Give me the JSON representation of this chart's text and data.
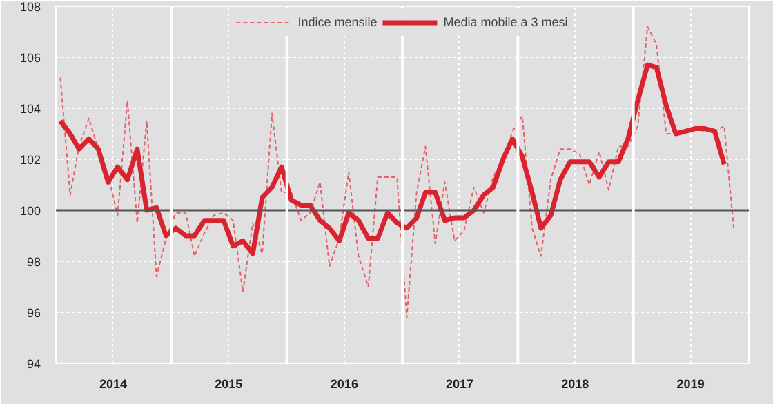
{
  "chart_data": {
    "type": "line",
    "x": [
      "2014-01-15",
      "2014-02-15",
      "2014-03-15",
      "2014-04-15",
      "2014-05-15",
      "2014-06-15",
      "2014-07-15",
      "2014-08-15",
      "2014-09-15",
      "2014-10-15",
      "2014-11-15",
      "2014-12-15",
      "2015-01-15",
      "2015-02-15",
      "2015-03-15",
      "2015-04-15",
      "2015-05-15",
      "2015-06-15",
      "2015-07-15",
      "2015-08-15",
      "2015-09-15",
      "2015-10-15",
      "2015-11-15",
      "2015-12-15",
      "2016-01-15",
      "2016-02-15",
      "2016-03-15",
      "2016-04-15",
      "2016-05-15",
      "2016-06-15",
      "2016-07-15",
      "2016-08-15",
      "2016-09-15",
      "2016-10-15",
      "2016-11-15",
      "2016-12-15",
      "2017-01-15",
      "2017-02-15",
      "2017-03-15",
      "2017-04-15",
      "2017-05-15",
      "2017-06-15",
      "2017-07-15",
      "2017-08-15",
      "2017-09-15",
      "2017-10-15",
      "2017-11-15",
      "2017-12-15",
      "2018-01-15",
      "2018-02-15",
      "2018-03-15",
      "2018-04-15",
      "2018-05-15",
      "2018-06-15",
      "2018-07-15",
      "2018-08-15",
      "2018-09-15",
      "2018-10-15",
      "2018-11-15",
      "2018-12-15",
      "2019-01-15",
      "2019-02-15",
      "2019-03-15",
      "2019-04-15",
      "2019-05-15",
      "2019-06-15",
      "2019-07-15",
      "2019-08-15",
      "2019-09-15",
      "2019-10-15",
      "2019-11-15"
    ],
    "series": [
      {
        "name": "Indice mensile",
        "color": "#e4606a",
        "line_style": "dashed",
        "values": [
          105.2,
          100.6,
          102.5,
          103.6,
          102.4,
          101.4,
          99.8,
          104.3,
          99.5,
          103.5,
          97.4,
          98.9,
          99.9,
          99.9,
          98.2,
          99.1,
          99.8,
          99.9,
          99.6,
          96.8,
          99.5,
          98.3,
          103.8,
          100.7,
          100.7,
          99.6,
          99.9,
          101.1,
          97.8,
          98.9,
          101.5,
          98.2,
          97.0,
          101.3,
          101.3,
          101.3,
          95.8,
          100.7,
          102.5,
          98.7,
          101.1,
          98.8,
          99.2,
          100.9,
          99.9,
          101.3,
          102.0,
          103.1,
          103.7,
          99.3,
          98.2,
          101.2,
          102.4,
          102.4,
          102.2,
          101.0,
          102.3,
          100.8,
          102.5,
          102.5,
          103.3,
          107.2,
          106.5,
          103.0,
          103.0,
          103.1,
          103.2,
          103.1,
          103.1,
          103.3,
          99.2
        ]
      },
      {
        "name": "Media mobile a 3 mesi",
        "color": "#d9232e",
        "line_style": "solid",
        "values": [
          103.5,
          103.0,
          102.4,
          102.8,
          102.4,
          101.1,
          101.7,
          101.2,
          102.4,
          100.0,
          100.1,
          99.0,
          99.3,
          99.0,
          99.0,
          99.6,
          99.6,
          99.6,
          98.6,
          98.8,
          98.3,
          100.5,
          100.9,
          101.7,
          100.4,
          100.2,
          100.2,
          99.6,
          99.3,
          98.8,
          99.9,
          99.6,
          98.9,
          98.9,
          99.9,
          99.5,
          99.3,
          99.7,
          100.7,
          100.7,
          99.6,
          99.7,
          99.7,
          100.0,
          100.6,
          100.9,
          102.0,
          102.8,
          102.1,
          100.7,
          99.3,
          99.8,
          101.2,
          101.9,
          101.9,
          101.9,
          101.3,
          101.9,
          101.9,
          102.8,
          104.3,
          105.7,
          105.6,
          104.1,
          103.0,
          103.1,
          103.2,
          103.2,
          103.1,
          101.8,
          null
        ]
      }
    ],
    "xlim": [
      "2014-01-01",
      "2020-01-01"
    ],
    "xticks": [
      {
        "value": "2014-07-01",
        "label": "2014"
      },
      {
        "value": "2015-07-01",
        "label": "2015"
      },
      {
        "value": "2016-07-01",
        "label": "2016"
      },
      {
        "value": "2017-07-01",
        "label": "2017"
      },
      {
        "value": "2018-07-01",
        "label": "2018"
      },
      {
        "value": "2019-07-01",
        "label": "2019"
      }
    ],
    "ylim": [
      94,
      108
    ],
    "yticks": [
      94,
      96,
      98,
      100,
      102,
      104,
      106,
      108
    ],
    "ref_lines": [
      {
        "axis": "y",
        "value": 100,
        "color": "#555555"
      },
      {
        "axis": "x",
        "value": "2015-01-01",
        "color": "#ffffff"
      },
      {
        "axis": "x",
        "value": "2016-01-01",
        "color": "#ffffff"
      },
      {
        "axis": "x",
        "value": "2017-01-01",
        "color": "#ffffff"
      },
      {
        "axis": "x",
        "value": "2018-01-01",
        "color": "#ffffff"
      },
      {
        "axis": "x",
        "value": "2019-01-01",
        "color": "#ffffff"
      }
    ],
    "grid": true,
    "legend": "top"
  }
}
